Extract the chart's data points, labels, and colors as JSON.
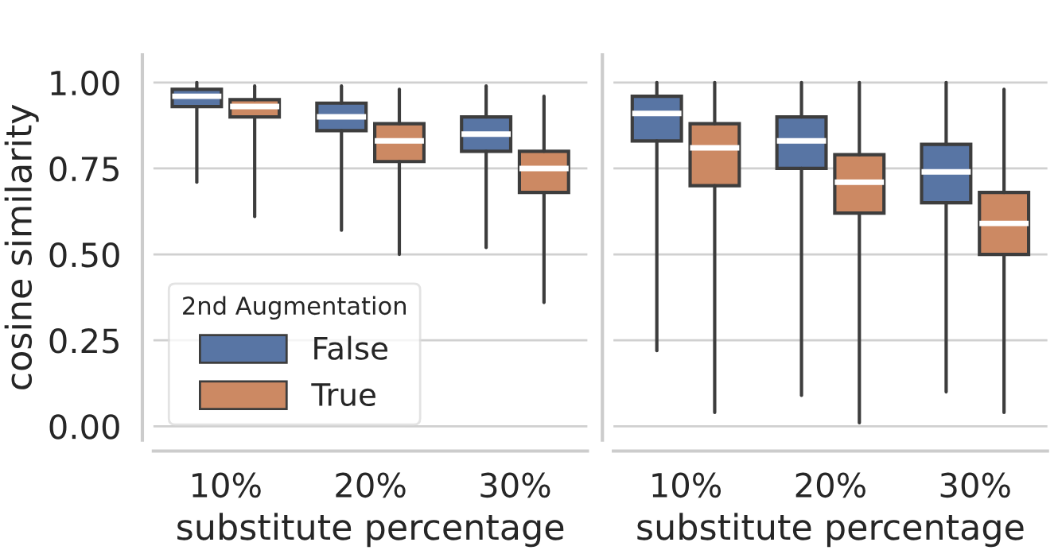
{
  "chart_data": [
    {
      "type": "box",
      "categories": [
        "10%",
        "20%",
        "30%"
      ],
      "xlabel": "substitute percentage",
      "ylabel": "cosine similarity",
      "legend_title": "2nd Augmentation",
      "legend": "bottom left",
      "grid": "y",
      "ylim": [
        -0.04,
        1.08
      ],
      "yticks": [
        {
          "value": 0,
          "label": "0.00"
        },
        {
          "value": 0.25,
          "label": "0.25"
        },
        {
          "value": 0.5,
          "label": "0.50"
        },
        {
          "value": 0.75,
          "label": "0.75"
        },
        {
          "value": 1,
          "label": "1.00"
        }
      ],
      "series": [
        {
          "name": "False",
          "color": "#5875a4",
          "boxes": [
            {
              "low": 0.71,
              "q1": 0.93,
              "median": 0.96,
              "q3": 0.98,
              "high": 1.0
            },
            {
              "low": 0.57,
              "q1": 0.86,
              "median": 0.9,
              "q3": 0.94,
              "high": 0.99
            },
            {
              "low": 0.52,
              "q1": 0.8,
              "median": 0.85,
              "q3": 0.9,
              "high": 0.99
            }
          ]
        },
        {
          "name": "True",
          "color": "#cc8963",
          "boxes": [
            {
              "low": 0.61,
              "q1": 0.9,
              "median": 0.93,
              "q3": 0.95,
              "high": 0.99
            },
            {
              "low": 0.5,
              "q1": 0.77,
              "median": 0.83,
              "q3": 0.88,
              "high": 0.98
            },
            {
              "low": 0.36,
              "q1": 0.68,
              "median": 0.75,
              "q3": 0.8,
              "high": 0.96
            }
          ]
        }
      ]
    },
    {
      "type": "box",
      "categories": [
        "10%",
        "20%",
        "30%"
      ],
      "xlabel": "substitute percentage",
      "grid": "y",
      "tick_labels": "x",
      "ylim": [
        -0.04,
        1.08
      ],
      "yticks": [
        {
          "value": 0,
          "label": null
        },
        {
          "value": 0.25,
          "label": null
        },
        {
          "value": 0.5,
          "label": null
        },
        {
          "value": 0.75,
          "label": null
        },
        {
          "value": 1,
          "label": null
        }
      ],
      "series": [
        {
          "color": "#5875a4",
          "boxes": [
            {
              "low": 0.22,
              "q1": 0.83,
              "median": 0.91,
              "q3": 0.96,
              "high": 1.0
            },
            {
              "low": 0.09,
              "q1": 0.75,
              "median": 0.83,
              "q3": 0.9,
              "high": 1.0
            },
            {
              "low": 0.1,
              "q1": 0.65,
              "median": 0.74,
              "q3": 0.82,
              "high": 1.0
            }
          ]
        },
        {
          "color": "#cc8963",
          "boxes": [
            {
              "low": 0.04,
              "q1": 0.7,
              "median": 0.81,
              "q3": 0.88,
              "high": 1.0
            },
            {
              "low": 0.01,
              "q1": 0.62,
              "median": 0.71,
              "q3": 0.79,
              "high": 1.0
            },
            {
              "low": 0.04,
              "q1": 0.5,
              "median": 0.59,
              "q3": 0.68,
              "high": 0.98
            }
          ]
        }
      ]
    }
  ]
}
